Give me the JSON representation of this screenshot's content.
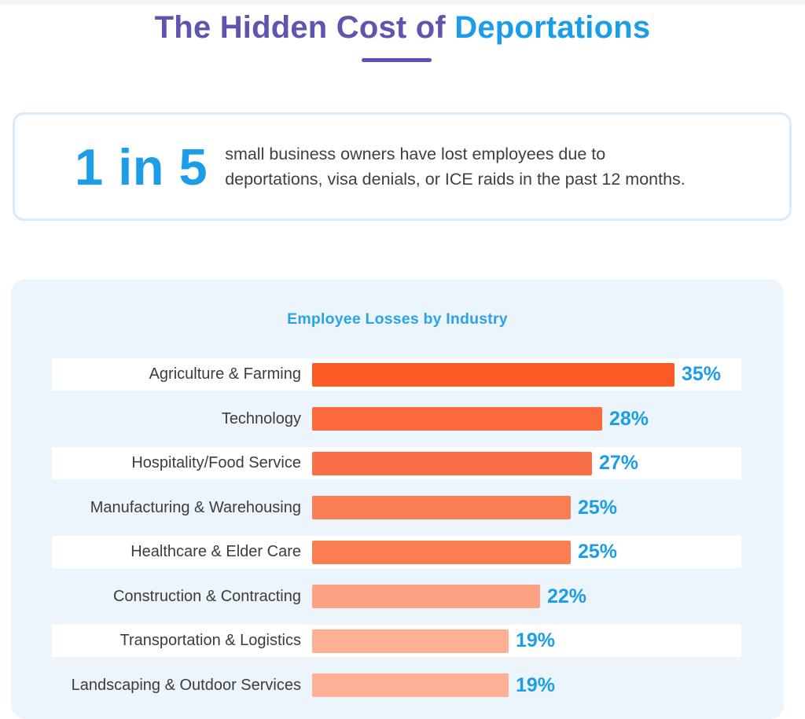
{
  "header": {
    "title_regular": "The Hidden Cost of ",
    "title_accent": "Deportations"
  },
  "callout": {
    "stat": "1 in 5",
    "description": "small business owners have lost employees due to deportations, visa denials, or ICE raids in the past 12 months.",
    "description_lines": [
      "small business owners have lost employees due to",
      "deportations, visa denials, or ICE raids in the past 12 months."
    ]
  },
  "chart_data": {
    "type": "bar",
    "orientation": "horizontal",
    "title": "Employee Losses by Industry",
    "categories": [
      "Agriculture & Farming",
      "Technology",
      "Hospitality/Food Service",
      "Manufacturing & Warehousing",
      "Healthcare & Elder Care",
      "Construction & Contracting",
      "Transportation & Logistics",
      "Landscaping & Outdoor Services"
    ],
    "values": [
      35,
      28,
      27,
      25,
      25,
      22,
      19,
      19
    ],
    "value_labels": [
      "35%",
      "28%",
      "27%",
      "25%",
      "25%",
      "22%",
      "19%",
      "19%"
    ],
    "unit": "%",
    "xlim": [
      0,
      35
    ],
    "grid": false,
    "legend": "none",
    "bar_colors": [
      "#fa5a24",
      "#fb6a3a",
      "#fa7046",
      "#fb7d54",
      "#fb7d54",
      "#fda282",
      "#feb096",
      "#feb096"
    ]
  },
  "colors": {
    "title_purple": "#5e55af",
    "underline_purple": "#5a52b8",
    "accent_blue": "#1b9de8",
    "chart_title_blue": "#2ba3e8",
    "panel_background": "#ecf5fb",
    "callout_border": "#d8ecf9",
    "label_gray": "#3c3c3c"
  }
}
